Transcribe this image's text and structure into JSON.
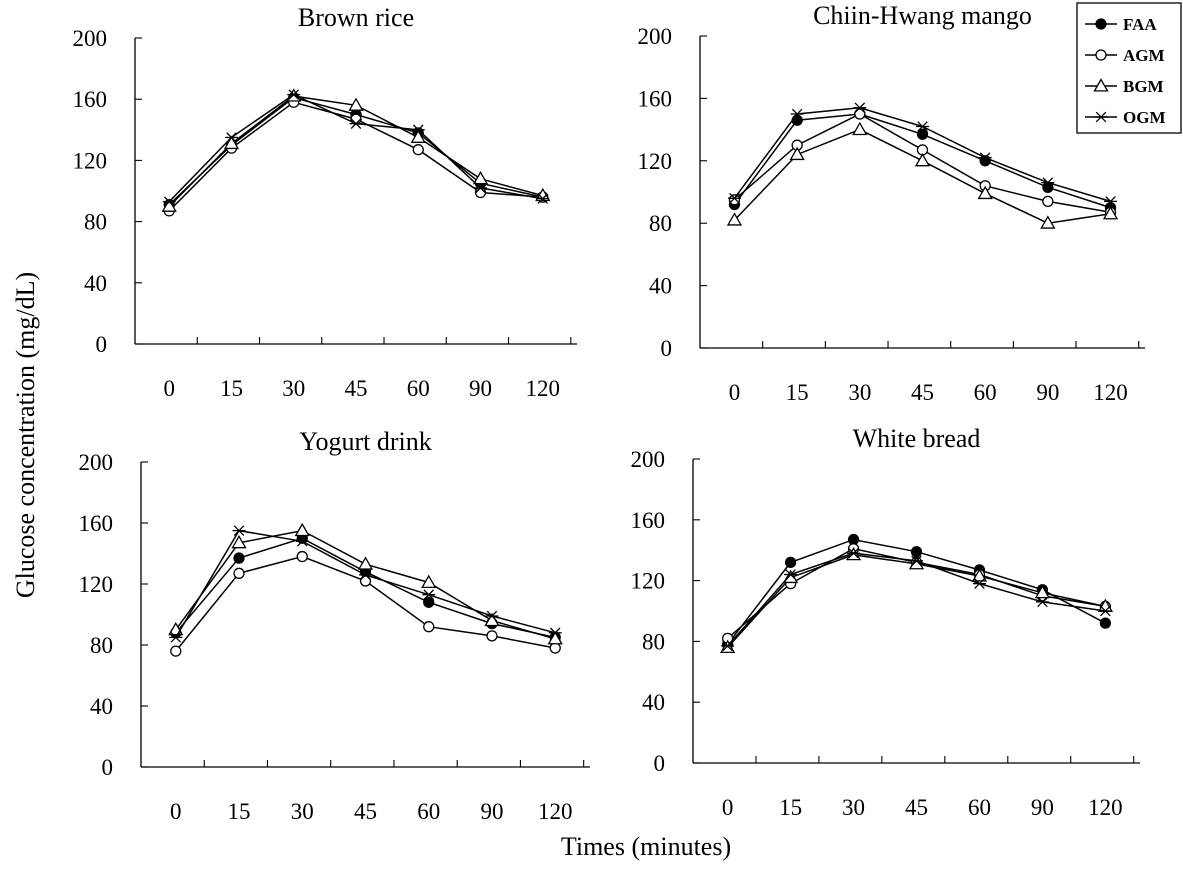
{
  "xlabel": "Times (minutes)",
  "ylabel": "Glucose concentration (mg/dL)",
  "legend": {
    "position": "top-right",
    "items": [
      {
        "name": "FAA",
        "marker": "filled-circle"
      },
      {
        "name": "AGM",
        "marker": "open-circle"
      },
      {
        "name": "BGM",
        "marker": "open-triangle"
      },
      {
        "name": "OGM",
        "marker": "asterisk"
      }
    ]
  },
  "chart_data": [
    {
      "type": "line",
      "title": "Brown rice",
      "categories": [
        "0",
        "15",
        "30",
        "45",
        "60",
        "90",
        "120"
      ],
      "y_ticks": [
        "0",
        "40",
        "80",
        "120",
        "160",
        "200"
      ],
      "ylim": [
        0,
        200
      ],
      "series": [
        {
          "name": "FAA",
          "values": [
            91,
            130,
            161,
            150,
            138,
            105,
            96
          ]
        },
        {
          "name": "AGM",
          "values": [
            87,
            128,
            158,
            147,
            127,
            99,
            96
          ]
        },
        {
          "name": "BGM",
          "values": [
            90,
            131,
            162,
            156,
            135,
            108,
            97
          ]
        },
        {
          "name": "OGM",
          "values": [
            93,
            135,
            163,
            144,
            140,
            102,
            95
          ]
        }
      ]
    },
    {
      "type": "line",
      "title": "Chiin-Hwang mango",
      "categories": [
        "0",
        "15",
        "30",
        "45",
        "60",
        "90",
        "120"
      ],
      "y_ticks": [
        "0",
        "40",
        "80",
        "120",
        "160",
        "200"
      ],
      "ylim": [
        0,
        200
      ],
      "series": [
        {
          "name": "FAA",
          "values": [
            92,
            146,
            150,
            137,
            120,
            103,
            90
          ]
        },
        {
          "name": "AGM",
          "values": [
            95,
            130,
            150,
            127,
            104,
            94,
            87
          ]
        },
        {
          "name": "BGM",
          "values": [
            82,
            124,
            140,
            120,
            99,
            80,
            86
          ]
        },
        {
          "name": "OGM",
          "values": [
            96,
            150,
            154,
            142,
            122,
            106,
            94
          ]
        }
      ]
    },
    {
      "type": "line",
      "title": "Yogurt drink",
      "categories": [
        "0",
        "15",
        "30",
        "45",
        "60",
        "90",
        "120"
      ],
      "y_ticks": [
        "0",
        "40",
        "80",
        "120",
        "160",
        "200"
      ],
      "ylim": [
        0,
        200
      ],
      "series": [
        {
          "name": "FAA",
          "values": [
            88,
            137,
            150,
            128,
            108,
            94,
            85
          ]
        },
        {
          "name": "AGM",
          "values": [
            76,
            127,
            138,
            122,
            92,
            86,
            78
          ]
        },
        {
          "name": "BGM",
          "values": [
            90,
            147,
            155,
            133,
            121,
            96,
            84
          ]
        },
        {
          "name": "OGM",
          "values": [
            85,
            155,
            148,
            126,
            113,
            99,
            88
          ]
        }
      ]
    },
    {
      "type": "line",
      "title": "White bread",
      "categories": [
        "0",
        "15",
        "30",
        "45",
        "60",
        "90",
        "120"
      ],
      "y_ticks": [
        "0",
        "40",
        "80",
        "120",
        "160",
        "200"
      ],
      "ylim": [
        0,
        200
      ],
      "series": [
        {
          "name": "FAA",
          "values": [
            78,
            132,
            147,
            139,
            127,
            114,
            92
          ]
        },
        {
          "name": "AGM",
          "values": [
            82,
            118,
            141,
            132,
            124,
            110,
            103
          ]
        },
        {
          "name": "BGM",
          "values": [
            76,
            122,
            137,
            131,
            123,
            112,
            103
          ]
        },
        {
          "name": "OGM",
          "values": [
            77,
            124,
            138,
            133,
            118,
            106,
            100
          ]
        }
      ]
    }
  ]
}
